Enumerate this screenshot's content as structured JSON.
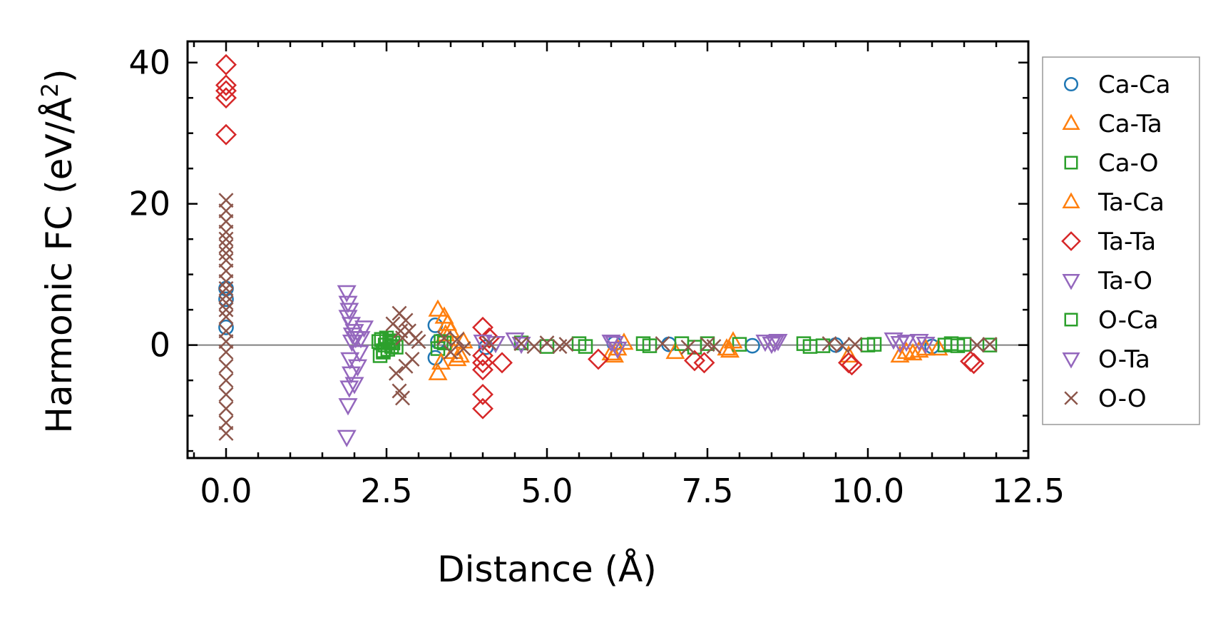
{
  "chart_data": {
    "type": "scatter",
    "title": "",
    "xlabel": "Distance (Å)",
    "ylabel": "Harmonic FC (eV/Å",
    "ylabel_sup": "2",
    "ylabel_close": ")",
    "xlim": [
      -0.6,
      12.5
    ],
    "ylim": [
      -16,
      43
    ],
    "xticks": [
      0.0,
      2.5,
      5.0,
      7.5,
      10.0,
      12.5
    ],
    "xtick_labels": [
      "0.0",
      "2.5",
      "5.0",
      "7.5",
      "10.0",
      "12.5"
    ],
    "yticks": [
      0,
      20,
      40
    ],
    "ytick_labels": [
      "0",
      "20",
      "40"
    ],
    "zero_line": true,
    "legend_position": "right",
    "series": [
      {
        "name": "Ca-Ca",
        "marker": "circle",
        "color": "#1f77b4",
        "x": [
          0.0,
          0.0,
          0.0,
          3.26,
          3.26,
          3.3,
          4.05,
          6.05,
          6.9,
          8.2,
          9.5,
          11.0
        ],
        "y": [
          2.5,
          6.5,
          8.0,
          2.8,
          -1.8,
          0.5,
          -0.3,
          0.2,
          0.1,
          -0.1,
          0.0,
          -0.2
        ]
      },
      {
        "name": "Ca-Ta",
        "marker": "triangle-up",
        "color": "#ff7f0e",
        "x": [
          3.3,
          3.3,
          3.4,
          3.42,
          3.5,
          3.55,
          3.6,
          6.05,
          6.1,
          6.2,
          7.0,
          7.8,
          7.9,
          9.7,
          10.5,
          10.6,
          10.8,
          11.1
        ],
        "y": [
          5.0,
          -4.0,
          4.0,
          1.5,
          2.0,
          -1.0,
          -2.0,
          -1.5,
          -0.5,
          0.3,
          -1.0,
          -0.5,
          0.5,
          -1.5,
          -1.5,
          -1.0,
          -0.8,
          -0.5
        ]
      },
      {
        "name": "Ca-O",
        "marker": "square",
        "color": "#2ca02c",
        "x": [
          2.38,
          2.4,
          2.42,
          2.45,
          2.48,
          2.5,
          2.52,
          2.55,
          2.58,
          2.6,
          3.3,
          3.35,
          4.6,
          5.5,
          5.6,
          6.5,
          6.6,
          7.1,
          7.3,
          8.0,
          9.0,
          9.1,
          10.0,
          11.3,
          11.4,
          11.5,
          11.9
        ],
        "y": [
          0.5,
          -1.5,
          0.8,
          -1.0,
          0.0,
          1.0,
          -0.6,
          0.4,
          -0.2,
          0.3,
          -0.5,
          0.5,
          0.3,
          0.2,
          -0.2,
          0.2,
          -0.1,
          0.2,
          -0.3,
          0.1,
          0.2,
          -0.2,
          0.0,
          0.2,
          -0.1,
          0.1,
          0.0
        ]
      },
      {
        "name": "Ta-Ca",
        "marker": "triangle-up",
        "color": "#ff7f0e",
        "x": [
          3.35,
          3.45,
          3.65,
          3.7,
          6.0,
          7.85,
          10.7,
          10.9
        ],
        "y": [
          -2.5,
          3.0,
          -1.5,
          0.5,
          -1.2,
          -0.8,
          -1.2,
          -0.5
        ]
      },
      {
        "name": "Ta-Ta",
        "marker": "diamond",
        "color": "#d62728",
        "x": [
          0.0,
          0.0,
          0.0,
          0.0,
          0.0,
          4.0,
          4.0,
          4.0,
          4.0,
          4.0,
          4.0,
          4.1,
          4.3,
          5.8,
          7.3,
          7.45,
          9.7,
          9.75,
          11.6,
          11.65
        ],
        "y": [
          39.7,
          36.8,
          36.0,
          35.0,
          29.8,
          2.5,
          -2.5,
          -3.5,
          -7.0,
          -9.0,
          -1.5,
          1.0,
          -2.5,
          -2.0,
          -2.2,
          -2.5,
          -2.5,
          -2.8,
          -2.3,
          -2.6
        ]
      },
      {
        "name": "Ta-O",
        "marker": "triangle-down",
        "color": "#9467bd",
        "x": [
          1.88,
          1.88,
          1.9,
          1.9,
          1.92,
          1.92,
          1.95,
          1.95,
          1.97,
          2.0,
          2.0,
          2.05,
          2.1,
          2.15,
          4.0,
          4.2,
          4.6,
          6.0,
          6.1,
          8.4,
          8.5,
          8.6,
          10.4,
          10.6,
          10.8
        ],
        "y": [
          7.5,
          -13.0,
          6.0,
          -8.5,
          5.0,
          -6.0,
          3.0,
          -4.0,
          1.5,
          2.0,
          -5.5,
          -3.0,
          1.0,
          2.5,
          0.5,
          0.3,
          0.2,
          0.5,
          -0.5,
          0.5,
          0.2,
          0.6,
          0.8,
          0.5,
          0.6
        ]
      },
      {
        "name": "O-Ca",
        "marker": "square",
        "color": "#2ca02c",
        "x": [
          2.45,
          2.55,
          2.65,
          3.4,
          5.0,
          7.5,
          9.3,
          10.1,
          11.2
        ],
        "y": [
          -0.8,
          0.6,
          -0.3,
          0.3,
          -0.2,
          0.2,
          -0.1,
          0.1,
          0.0
        ]
      },
      {
        "name": "O-Ta",
        "marker": "triangle-down",
        "color": "#9467bd",
        "x": [
          1.9,
          1.93,
          1.96,
          2.02,
          2.08,
          4.5,
          6.05,
          8.55,
          10.5,
          10.9
        ],
        "y": [
          4.0,
          -2.0,
          0.5,
          1.0,
          -1.0,
          0.8,
          0.3,
          0.4,
          0.3,
          0.2
        ]
      },
      {
        "name": "O-O",
        "marker": "x",
        "color": "#8c564b",
        "x": [
          0.0,
          0.0,
          0.0,
          0.0,
          0.0,
          0.0,
          0.0,
          0.0,
          0.0,
          0.0,
          0.0,
          0.0,
          0.0,
          0.0,
          0.0,
          0.0,
          0.0,
          0.0,
          0.0,
          0.0,
          0.0,
          0.0,
          0.0,
          0.0,
          2.6,
          2.65,
          2.7,
          2.7,
          2.72,
          2.75,
          2.75,
          2.8,
          2.8,
          2.85,
          2.9,
          2.95,
          3.0,
          3.4,
          3.5,
          3.6,
          3.7,
          4.1,
          4.6,
          4.8,
          5.0,
          5.2,
          5.3,
          6.8,
          7.2,
          7.5,
          7.6,
          9.4,
          9.6,
          9.8,
          11.7,
          11.9
        ],
        "y": [
          20.5,
          19.0,
          17.5,
          16.0,
          15.0,
          14.0,
          13.0,
          12.0,
          10.5,
          9.0,
          8.0,
          7.0,
          6.0,
          5.0,
          4.0,
          2.0,
          0.5,
          -1.0,
          -3.0,
          -5.0,
          -7.0,
          -9.0,
          -11.0,
          -12.5,
          3.0,
          -4.0,
          4.5,
          -6.5,
          2.0,
          -7.5,
          1.0,
          3.5,
          -3.0,
          2.0,
          -2.0,
          1.0,
          0.5,
          1.0,
          -1.0,
          0.8,
          -0.5,
          0.3,
          0.2,
          -0.2,
          0.3,
          -0.2,
          0.1,
          0.2,
          -0.3,
          0.1,
          -0.2,
          0.2,
          -0.1,
          0.1,
          0.0,
          0.1
        ]
      }
    ]
  }
}
